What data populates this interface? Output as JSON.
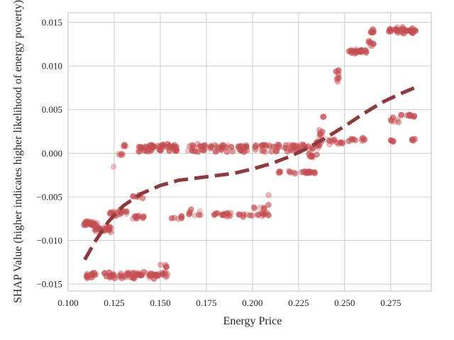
{
  "chart_data": {
    "type": "scatter",
    "title": "",
    "xlabel": "Energy Price",
    "ylabel": "SHAP Value (higher indicates higher likelihood of energy poverty)",
    "xlim": [
      0.1,
      0.297
    ],
    "ylim": [
      -0.0158,
      0.0161
    ],
    "x_ticks": [
      {
        "value": 0.1,
        "label": "0.100"
      },
      {
        "value": 0.125,
        "label": "0.125"
      },
      {
        "value": 0.15,
        "label": "0.150"
      },
      {
        "value": 0.175,
        "label": "0.175"
      },
      {
        "value": 0.2,
        "label": "0.200"
      },
      {
        "value": 0.225,
        "label": "0.225"
      },
      {
        "value": 0.25,
        "label": "0.250"
      },
      {
        "value": 0.275,
        "label": "0.275"
      }
    ],
    "y_ticks": [
      {
        "value": -0.015,
        "label": "−0.015"
      },
      {
        "value": -0.01,
        "label": "−0.010"
      },
      {
        "value": -0.005,
        "label": "−0.005"
      },
      {
        "value": 0.0,
        "label": "0.000"
      },
      {
        "value": 0.005,
        "label": "0.005"
      },
      {
        "value": 0.01,
        "label": "0.010"
      },
      {
        "value": 0.015,
        "label": "0.015"
      }
    ],
    "grid": true,
    "point_color": "#c44e52",
    "trend_color": "#8c3a3e",
    "clusters": [
      {
        "x_range": [
          0.108,
          0.116
        ],
        "y": -0.0081,
        "spread": 0.0004,
        "n": 28
      },
      {
        "x_range": [
          0.114,
          0.126
        ],
        "y": -0.0087,
        "spread": 0.0004,
        "n": 26
      },
      {
        "x_range": [
          0.122,
          0.126
        ],
        "y": -0.007,
        "spread": 0.0004,
        "n": 8
      },
      {
        "x_range": [
          0.127,
          0.133
        ],
        "y": -0.0067,
        "spread": 0.0004,
        "n": 10
      },
      {
        "x_range": [
          0.134,
          0.138
        ],
        "y": -0.0073,
        "spread": 0.0003,
        "n": 6
      },
      {
        "x_range": [
          0.138,
          0.141
        ],
        "y": -0.0074,
        "spread": 0.0003,
        "n": 5
      },
      {
        "x_range": [
          0.135,
          0.141
        ],
        "y": -0.005,
        "spread": 0.0003,
        "n": 6
      },
      {
        "x_range": [
          0.127,
          0.131
        ],
        "y": -0.0001,
        "spread": 0.0002,
        "n": 5
      },
      {
        "x_range": [
          0.124,
          0.125
        ],
        "y": -0.0015,
        "spread": 0.0001,
        "n": 1
      },
      {
        "x_range": [
          0.13,
          0.133
        ],
        "y": 0.0009,
        "spread": 0.0002,
        "n": 4
      },
      {
        "x_range": [
          0.137,
          0.147
        ],
        "y": 0.0008,
        "spread": 0.0003,
        "n": 18
      },
      {
        "x_range": [
          0.138,
          0.147
        ],
        "y": 0.0003,
        "spread": 0.0002,
        "n": 10
      },
      {
        "x_range": [
          0.148,
          0.16
        ],
        "y": 0.0008,
        "spread": 0.0003,
        "n": 20
      },
      {
        "x_range": [
          0.148,
          0.159
        ],
        "y": 0.0003,
        "spread": 0.0002,
        "n": 10
      },
      {
        "x_range": [
          0.165,
          0.175
        ],
        "y": 0.0008,
        "spread": 0.0003,
        "n": 14
      },
      {
        "x_range": [
          0.165,
          0.175
        ],
        "y": 0.0003,
        "spread": 0.0002,
        "n": 8
      },
      {
        "x_range": [
          0.177,
          0.19
        ],
        "y": 0.0008,
        "spread": 0.0003,
        "n": 18
      },
      {
        "x_range": [
          0.178,
          0.19
        ],
        "y": 0.0003,
        "spread": 0.0002,
        "n": 8
      },
      {
        "x_range": [
          0.192,
          0.215
        ],
        "y": 0.0008,
        "spread": 0.0003,
        "n": 28
      },
      {
        "x_range": [
          0.193,
          0.214
        ],
        "y": 0.0003,
        "spread": 0.0002,
        "n": 12
      },
      {
        "x_range": [
          0.216,
          0.234
        ],
        "y": 0.0008,
        "spread": 0.0003,
        "n": 22
      },
      {
        "x_range": [
          0.216,
          0.233
        ],
        "y": 0.0003,
        "spread": 0.0002,
        "n": 10
      },
      {
        "x_range": [
          0.155,
          0.162
        ],
        "y": -0.0073,
        "spread": 0.0004,
        "n": 6
      },
      {
        "x_range": [
          0.165,
          0.172
        ],
        "y": -0.0068,
        "spread": 0.0004,
        "n": 8
      },
      {
        "x_range": [
          0.177,
          0.19
        ],
        "y": -0.007,
        "spread": 0.0003,
        "n": 16
      },
      {
        "x_range": [
          0.192,
          0.209
        ],
        "y": -0.007,
        "spread": 0.0003,
        "n": 20
      },
      {
        "x_range": [
          0.2,
          0.209
        ],
        "y": -0.0062,
        "spread": 0.0004,
        "n": 6
      },
      {
        "x_range": [
          0.208,
          0.21
        ],
        "y": -0.0047,
        "spread": 0.0002,
        "n": 1
      },
      {
        "x_range": [
          0.212,
          0.235
        ],
        "y": -0.0022,
        "spread": 0.0002,
        "n": 26
      },
      {
        "x_range": [
          0.228,
          0.235
        ],
        "y": -0.0003,
        "spread": 0.0003,
        "n": 8
      },
      {
        "x_range": [
          0.234,
          0.238
        ],
        "y": 0.0012,
        "spread": 0.0008,
        "n": 12
      },
      {
        "x_range": [
          0.236,
          0.238
        ],
        "y": 0.0023,
        "spread": 0.0006,
        "n": 6
      },
      {
        "x_range": [
          0.238,
          0.24
        ],
        "y": 0.0042,
        "spread": 0.0002,
        "n": 2
      },
      {
        "x_range": [
          0.24,
          0.25
        ],
        "y": 0.0013,
        "spread": 0.0004,
        "n": 12
      },
      {
        "x_range": [
          0.245,
          0.247
        ],
        "y": 0.0088,
        "spread": 0.001,
        "n": 8
      },
      {
        "x_range": [
          0.252,
          0.262
        ],
        "y": 0.0117,
        "spread": 0.0003,
        "n": 26
      },
      {
        "x_range": [
          0.262,
          0.266
        ],
        "y": 0.0126,
        "spread": 0.0005,
        "n": 8
      },
      {
        "x_range": [
          0.264,
          0.266
        ],
        "y": 0.014,
        "spread": 0.0003,
        "n": 8
      },
      {
        "x_range": [
          0.252,
          0.266
        ],
        "y": 0.0015,
        "spread": 0.0003,
        "n": 10
      },
      {
        "x_range": [
          0.274,
          0.276
        ],
        "y": 0.014,
        "spread": 0.0003,
        "n": 6
      },
      {
        "x_range": [
          0.277,
          0.287
        ],
        "y": 0.0141,
        "spread": 0.0004,
        "n": 28
      },
      {
        "x_range": [
          0.286,
          0.289
        ],
        "y": 0.014,
        "spread": 0.0004,
        "n": 6
      },
      {
        "x_range": [
          0.274,
          0.28
        ],
        "y": 0.0038,
        "spread": 0.0004,
        "n": 8
      },
      {
        "x_range": [
          0.28,
          0.287
        ],
        "y": 0.0043,
        "spread": 0.0003,
        "n": 8
      },
      {
        "x_range": [
          0.287,
          0.289
        ],
        "y": 0.0043,
        "spread": 0.0002,
        "n": 3
      },
      {
        "x_range": [
          0.274,
          0.278
        ],
        "y": 0.0015,
        "spread": 0.0002,
        "n": 4
      },
      {
        "x_range": [
          0.285,
          0.289
        ],
        "y": 0.0015,
        "spread": 0.0002,
        "n": 4
      },
      {
        "x_range": [
          0.11,
          0.116
        ],
        "y": -0.014,
        "spread": 0.0004,
        "n": 14
      },
      {
        "x_range": [
          0.119,
          0.126
        ],
        "y": -0.014,
        "spread": 0.0004,
        "n": 12
      },
      {
        "x_range": [
          0.127,
          0.136
        ],
        "y": -0.014,
        "spread": 0.0005,
        "n": 22
      },
      {
        "x_range": [
          0.137,
          0.147
        ],
        "y": -0.014,
        "spread": 0.0005,
        "n": 22
      },
      {
        "x_range": [
          0.147,
          0.154
        ],
        "y": -0.014,
        "spread": 0.0004,
        "n": 14
      },
      {
        "x_range": [
          0.15,
          0.154
        ],
        "y": -0.013,
        "spread": 0.0003,
        "n": 4
      }
    ],
    "trend_line": [
      {
        "x": 0.109,
        "y": -0.0122
      },
      {
        "x": 0.115,
        "y": -0.01
      },
      {
        "x": 0.122,
        "y": -0.0078
      },
      {
        "x": 0.13,
        "y": -0.006
      },
      {
        "x": 0.14,
        "y": -0.0046
      },
      {
        "x": 0.15,
        "y": -0.0037
      },
      {
        "x": 0.16,
        "y": -0.0031
      },
      {
        "x": 0.175,
        "y": -0.0027
      },
      {
        "x": 0.19,
        "y": -0.0023
      },
      {
        "x": 0.2,
        "y": -0.0018
      },
      {
        "x": 0.21,
        "y": -0.0012
      },
      {
        "x": 0.22,
        "y": -0.0004
      },
      {
        "x": 0.23,
        "y": 0.0006
      },
      {
        "x": 0.24,
        "y": 0.0018
      },
      {
        "x": 0.25,
        "y": 0.0031
      },
      {
        "x": 0.26,
        "y": 0.0045
      },
      {
        "x": 0.27,
        "y": 0.0058
      },
      {
        "x": 0.28,
        "y": 0.0068
      },
      {
        "x": 0.289,
        "y": 0.0076
      }
    ]
  }
}
